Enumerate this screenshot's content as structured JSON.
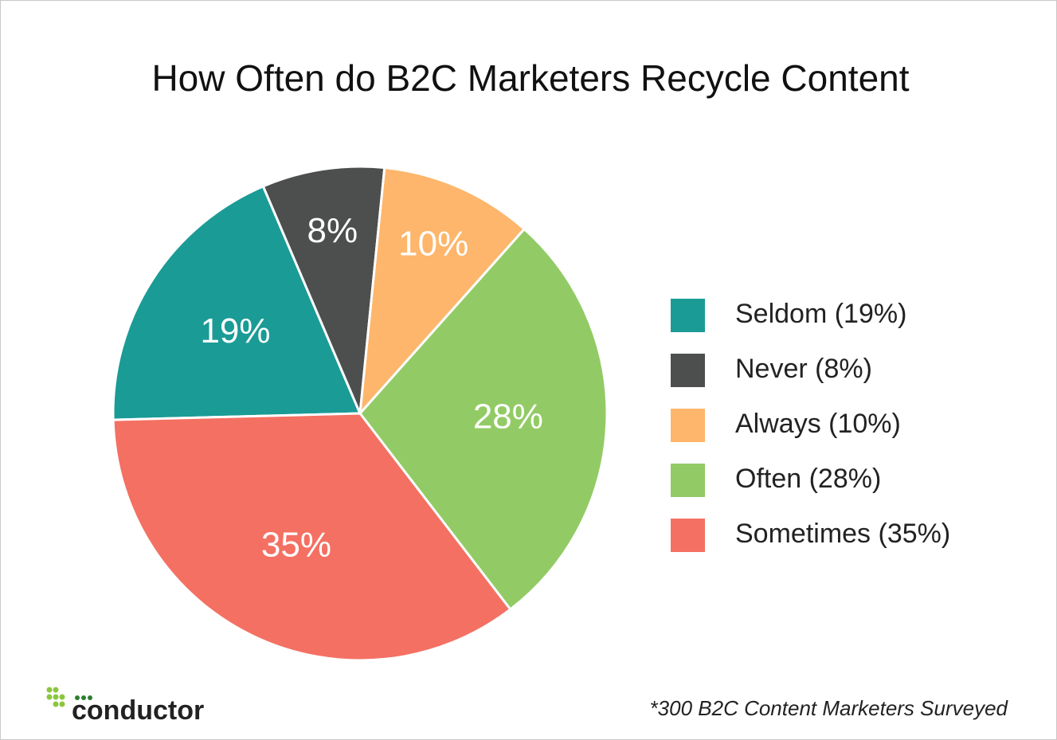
{
  "chart_data": {
    "type": "pie",
    "title": "How Often do B2C Marketers Recycle Content",
    "categories": [
      "Seldom (19%)",
      "Never (8%)",
      "Always (10%)",
      "Often (28%)",
      "Sometimes (35%)"
    ],
    "values": [
      19,
      8,
      10,
      28,
      35
    ],
    "value_labels": [
      "19%",
      "8%",
      "10%",
      "28%",
      "35%"
    ],
    "colors": [
      "#1a9b96",
      "#4d4f4e",
      "#fdb66c",
      "#92cb65",
      "#f47063"
    ],
    "legend": "right",
    "footnote": "*300 B2C Content Marketers Surveyed",
    "logo": "conductor"
  }
}
